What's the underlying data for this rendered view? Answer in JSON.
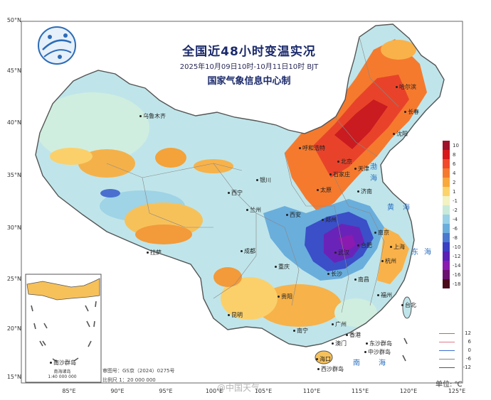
{
  "title": {
    "main": "全国近48小时变温实况",
    "time_range": "2025年10月09日10时-10月11日10时 BJT",
    "org": "国家气象信息中心制"
  },
  "lat_ticks": [
    "50°N",
    "45°N",
    "40°N",
    "35°N",
    "30°N",
    "25°N",
    "20°N",
    "15°N"
  ],
  "lon_ticks": [
    "85°E",
    "90°E",
    "95°E",
    "100°E",
    "105°E",
    "110°E",
    "115°E",
    "120°E",
    "125°E"
  ],
  "cities": [
    {
      "name": "哈尔滨"
    },
    {
      "name": "长春"
    },
    {
      "name": "沈阳"
    },
    {
      "name": "乌鲁木齐"
    },
    {
      "name": "呼和浩特"
    },
    {
      "name": "北京"
    },
    {
      "name": "天津"
    },
    {
      "name": "石家庄"
    },
    {
      "name": "太原"
    },
    {
      "name": "济南"
    },
    {
      "name": "银川"
    },
    {
      "name": "西宁"
    },
    {
      "name": "兰州"
    },
    {
      "name": "西安"
    },
    {
      "name": "郑州"
    },
    {
      "name": "南京"
    },
    {
      "name": "上海"
    },
    {
      "name": "合肥"
    },
    {
      "name": "武汉"
    },
    {
      "name": "杭州"
    },
    {
      "name": "成都"
    },
    {
      "name": "重庆"
    },
    {
      "name": "拉萨"
    },
    {
      "name": "长沙"
    },
    {
      "name": "南昌"
    },
    {
      "name": "福州"
    },
    {
      "name": "贵阳"
    },
    {
      "name": "台北"
    },
    {
      "name": "昆明"
    },
    {
      "name": "南宁"
    },
    {
      "name": "广州"
    },
    {
      "name": "香港"
    },
    {
      "name": "澳门"
    },
    {
      "name": "海口"
    },
    {
      "name": "东沙群岛"
    },
    {
      "name": "西沙群岛"
    },
    {
      "name": "中沙群岛"
    },
    {
      "name": "南沙群岛"
    }
  ],
  "seas": [
    {
      "name": "渤"
    },
    {
      "name": "海"
    },
    {
      "name": "黄"
    },
    {
      "name": "海"
    },
    {
      "name": "东"
    },
    {
      "name": "海"
    },
    {
      "name": "南"
    },
    {
      "name": "海"
    }
  ],
  "legend": {
    "labels": [
      "10",
      "8",
      "6",
      "4",
      "2",
      "1",
      "-1",
      "-2",
      "-4",
      "-6",
      "-8",
      "-10",
      "-12",
      "-14",
      "-16",
      "-18"
    ],
    "colors": [
      "#a0112a",
      "#d7191c",
      "#f04a2a",
      "#f57a2e",
      "#f9a83b",
      "#fcd36b",
      "#f2f2c2",
      "#c9ead9",
      "#9ad1e6",
      "#6aaedc",
      "#4a79cf",
      "#3a3fc4",
      "#5a1fb6",
      "#8a1ab0",
      "#6a1170",
      "#4a0a1a"
    ]
  },
  "line_legend": {
    "items": [
      {
        "label": "12",
        "color": "#e05a5a"
      },
      {
        "label": "6",
        "color": "#e07a8a"
      },
      {
        "label": "0",
        "color": "#3a6fd0"
      },
      {
        "label": "-6",
        "color": "#888888"
      },
      {
        "label": "-12",
        "color": "#555555"
      }
    ]
  },
  "unit": "单位: ℃",
  "inset": {
    "title": "南海诸岛",
    "scale": "1:40 000 000"
  },
  "meta": {
    "review": "审图号：GS京（2024）0275号",
    "scale": "比例尺 1：20 000 000"
  },
  "watermark": "@中国天气"
}
